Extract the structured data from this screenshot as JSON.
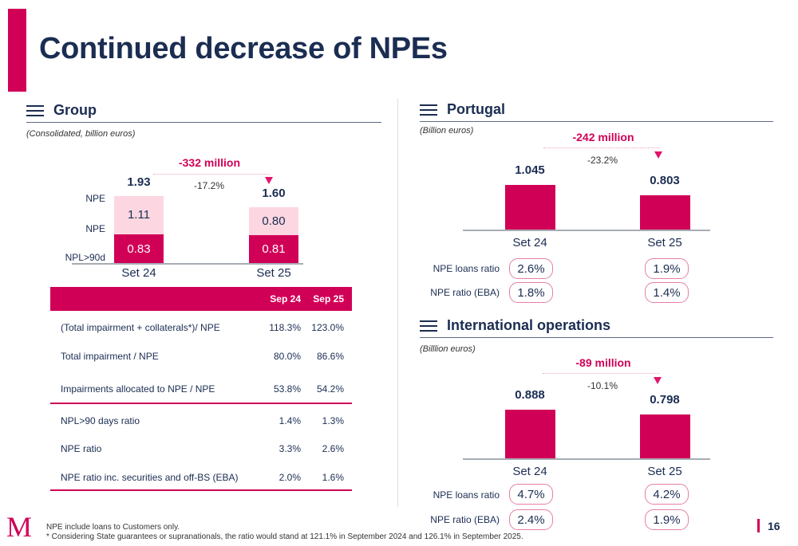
{
  "page": {
    "title": "Continued decrease of NPEs",
    "page_number": "16",
    "logo_text": "M",
    "footnotes": [
      "NPE include loans to Customers only.",
      "* Considering State guarantees or supranationals, the ratio would stand at 121.1% in September 2024 and 126.1% in September 2025."
    ]
  },
  "group": {
    "title": "Group",
    "unit": "(Consolidated, billion euros)",
    "delta": {
      "label": "-332 million",
      "pct": "-17.2%"
    },
    "row_labels": {
      "total": "NPE",
      "npe": "NPE",
      "npl90": "NPL>90d"
    },
    "table": {
      "columns": [
        "Sep 24",
        "Sep 25"
      ],
      "rows_top": [
        {
          "label": "(Total impairment + collaterals*)/ NPE",
          "values": [
            "118.3%",
            "123.0%"
          ]
        },
        {
          "label": "Total impairment / NPE",
          "values": [
            "80.0%",
            "86.6%"
          ]
        },
        {
          "label": "Impairments allocated to NPE / NPE",
          "values": [
            "53.8%",
            "54.2%"
          ]
        }
      ],
      "rows_bottom": [
        {
          "label": "NPL>90 days ratio",
          "values": [
            "1.4%",
            "1.3%"
          ]
        },
        {
          "label": "NPE ratio",
          "values": [
            "3.3%",
            "2.6%"
          ]
        },
        {
          "label": "NPE ratio inc. securities and off-BS (EBA)",
          "values": [
            "2.0%",
            "1.6%"
          ]
        }
      ]
    }
  },
  "portugal": {
    "title": "Portugal",
    "unit": "(Billion euros)",
    "delta": {
      "label": "-242 million",
      "pct": "-23.2%"
    },
    "ratio_labels": [
      "NPE loans ratio",
      "NPE ratio (EBA)"
    ],
    "ratios": {
      "Set 24": [
        "2.6%",
        "1.8%"
      ],
      "Set 25": [
        "1.9%",
        "1.4%"
      ]
    }
  },
  "international": {
    "title": "International operations",
    "unit": "(Billlion euros)",
    "delta": {
      "label": "-89 million",
      "pct": "-10.1%"
    },
    "ratio_labels": [
      "NPE loans ratio",
      "NPE ratio (EBA)"
    ],
    "ratios": {
      "Set 24": [
        "4.7%",
        "2.4%"
      ],
      "Set 25": [
        "4.2%",
        "1.9%"
      ]
    }
  },
  "colors": {
    "accent": "#d10057",
    "accent_light": "#fcd7e1",
    "navy": "#1b2d52"
  },
  "chart_data": [
    {
      "type": "bar",
      "stacked": true,
      "title": "Group",
      "subtitle": "(Consolidated, billion euros)",
      "categories": [
        "Set 24",
        "Set 25"
      ],
      "series": [
        {
          "name": "NPL>90d",
          "values": [
            0.83,
            0.81
          ],
          "labels": [
            "0.83",
            "0.81"
          ]
        },
        {
          "name": "NPE",
          "values": [
            1.11,
            0.8
          ],
          "labels": [
            "1.11",
            "0.80"
          ]
        }
      ],
      "totals": [
        1.93,
        1.6
      ],
      "total_labels": [
        "1.93",
        "1.60"
      ],
      "annotation": {
        "text": "-332 million",
        "pct": "-17.2%"
      },
      "xlabel": "",
      "ylabel": "",
      "ylim": [
        0,
        2.2
      ]
    },
    {
      "type": "bar",
      "title": "Portugal",
      "subtitle": "(Billion euros)",
      "categories": [
        "Set 24",
        "Set 25"
      ],
      "values": [
        1.045,
        0.803
      ],
      "value_labels": [
        "1.045",
        "0.803"
      ],
      "annotation": {
        "text": "-242 million",
        "pct": "-23.2%"
      },
      "xlabel": "",
      "ylabel": "",
      "ylim": [
        0,
        1.3
      ]
    },
    {
      "type": "bar",
      "title": "International operations",
      "subtitle": "(Billlion euros)",
      "categories": [
        "Set 24",
        "Set 25"
      ],
      "values": [
        0.888,
        0.798
      ],
      "value_labels": [
        "0.888",
        "0.798"
      ],
      "annotation": {
        "text": "-89 million",
        "pct": "-10.1%"
      },
      "xlabel": "",
      "ylabel": "",
      "ylim": [
        0,
        1.3
      ]
    }
  ]
}
